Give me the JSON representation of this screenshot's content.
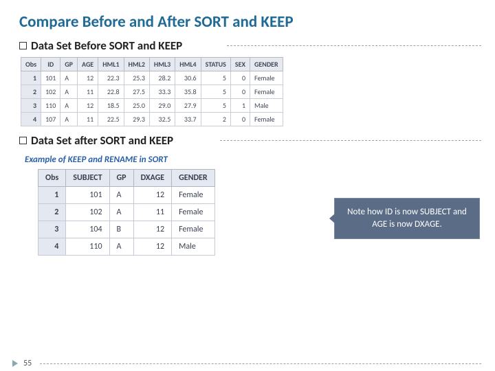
{
  "title": "Compare Before and After SORT and KEEP",
  "section1": {
    "label": "Data Set Before SORT and KEEP"
  },
  "section2": {
    "label": "Data Set after SORT and KEEP"
  },
  "table1": {
    "columns": [
      "Obs",
      "ID",
      "GP",
      "AGE",
      "HML1",
      "HML2",
      "HML3",
      "HML4",
      "STATUS",
      "SEX",
      "GENDER"
    ],
    "rows": [
      [
        "1",
        "101",
        "A",
        "12",
        "22.3",
        "25.3",
        "28.2",
        "30.6",
        "5",
        "0",
        "Female"
      ],
      [
        "2",
        "102",
        "A",
        "11",
        "22.8",
        "27.5",
        "33.3",
        "35.8",
        "5",
        "0",
        "Female"
      ],
      [
        "3",
        "110",
        "A",
        "12",
        "18.5",
        "25.0",
        "29.0",
        "27.9",
        "5",
        "1",
        "Male"
      ],
      [
        "4",
        "107",
        "A",
        "11",
        "22.5",
        "29.3",
        "32.5",
        "33.7",
        "2",
        "0",
        "Female"
      ]
    ]
  },
  "exampleTitle": "Example of KEEP and RENAME in SORT",
  "table2": {
    "columns": [
      "Obs",
      "SUBJECT",
      "GP",
      "DXAGE",
      "GENDER"
    ],
    "rows": [
      [
        "1",
        "101",
        "A",
        "12",
        "Female"
      ],
      [
        "2",
        "102",
        "A",
        "11",
        "Female"
      ],
      [
        "3",
        "104",
        "B",
        "12",
        "Female"
      ],
      [
        "4",
        "110",
        "A",
        "12",
        "Male"
      ]
    ]
  },
  "callout": "Note how ID is now SUBJECT and AGE is now DXAGE.",
  "pageNumber": "55"
}
